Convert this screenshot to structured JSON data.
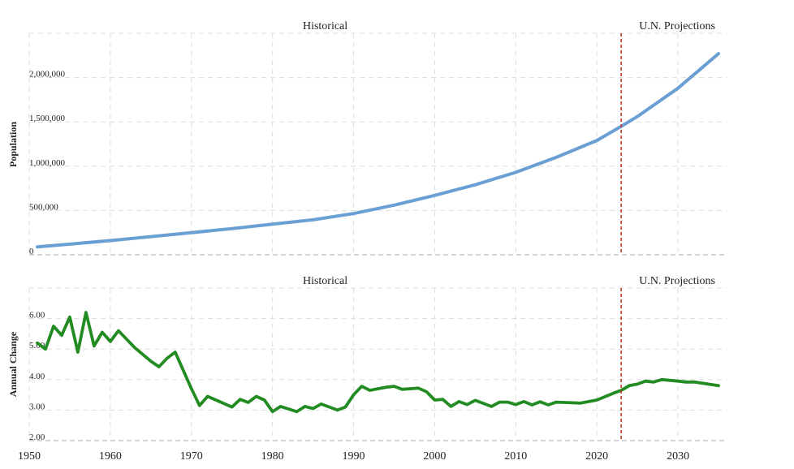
{
  "chart_data": [
    {
      "type": "line",
      "ylabel": "Population",
      "section_labels": {
        "historical": "Historical",
        "projection": "U.N. Projections"
      },
      "divider_x": 2023,
      "xlim": [
        1950,
        2036
      ],
      "ylim": [
        0,
        2500000
      ],
      "y_ticks": [
        0,
        500000,
        1000000,
        1500000,
        2000000
      ],
      "y_tick_labels": [
        "0",
        "500,000",
        "1,000,000",
        "1,500,000",
        "2,000,000"
      ],
      "grid": true,
      "color": "#6a9fd4",
      "series": [
        {
          "x": [
            1951,
            1955,
            1960,
            1965,
            1970,
            1975,
            1980,
            1985,
            1990,
            1995,
            2000,
            2005,
            2010,
            2015,
            2020,
            2023,
            2025,
            2030,
            2035
          ],
          "values": [
            90000,
            120000,
            160000,
            205000,
            250000,
            295000,
            345000,
            395000,
            465000,
            560000,
            670000,
            790000,
            930000,
            1100000,
            1290000,
            1450000,
            1560000,
            1880000,
            2270000
          ]
        }
      ]
    },
    {
      "type": "line",
      "ylabel": "Annual Change",
      "section_labels": {
        "historical": "Historical",
        "projection": "U.N. Projections"
      },
      "divider_x": 2023,
      "xlim": [
        1950,
        2036
      ],
      "ylim": [
        2.0,
        7.0
      ],
      "y_ticks": [
        2,
        3,
        4,
        5,
        6
      ],
      "y_tick_labels": [
        "2.00",
        "3.00",
        "4.00",
        "5.00",
        "6.00"
      ],
      "x_ticks": [
        1950,
        1960,
        1970,
        1980,
        1990,
        2000,
        2010,
        2020,
        2030
      ],
      "x_tick_labels": [
        "1950",
        "1960",
        "1970",
        "1980",
        "1990",
        "2000",
        "2010",
        "2020",
        "2030"
      ],
      "grid": true,
      "color": "#228b22",
      "series": [
        {
          "x": [
            1951,
            1952,
            1953,
            1954,
            1955,
            1956,
            1957,
            1958,
            1959,
            1960,
            1961,
            1963,
            1965,
            1966,
            1967,
            1968,
            1970,
            1971,
            1972,
            1975,
            1976,
            1977,
            1978,
            1979,
            1980,
            1981,
            1983,
            1984,
            1985,
            1986,
            1988,
            1989,
            1990,
            1991,
            1992,
            1994,
            1995,
            1996,
            1998,
            1999,
            2000,
            2001,
            2002,
            2003,
            2004,
            2005,
            2006,
            2007,
            2008,
            2009,
            2010,
            2011,
            2012,
            2013,
            2014,
            2015,
            2017,
            2018,
            2020,
            2022,
            2023,
            2024,
            2025,
            2026,
            2027,
            2028,
            2030,
            2031,
            2032,
            2035
          ],
          "values": [
            5.2,
            5.0,
            5.75,
            5.45,
            6.05,
            4.9,
            6.2,
            5.1,
            5.55,
            5.25,
            5.6,
            5.05,
            4.6,
            4.42,
            4.7,
            4.9,
            3.7,
            3.15,
            3.45,
            3.1,
            3.35,
            3.25,
            3.45,
            3.33,
            2.95,
            3.12,
            2.95,
            3.12,
            3.05,
            3.2,
            3.0,
            3.1,
            3.5,
            3.78,
            3.65,
            3.75,
            3.78,
            3.68,
            3.72,
            3.6,
            3.33,
            3.35,
            3.12,
            3.28,
            3.18,
            3.32,
            3.22,
            3.12,
            3.26,
            3.26,
            3.18,
            3.28,
            3.17,
            3.27,
            3.17,
            3.26,
            3.24,
            3.23,
            3.33,
            3.55,
            3.65,
            3.8,
            3.85,
            3.95,
            3.92,
            4.0,
            3.95,
            3.92,
            3.92,
            3.8
          ]
        }
      ]
    }
  ]
}
